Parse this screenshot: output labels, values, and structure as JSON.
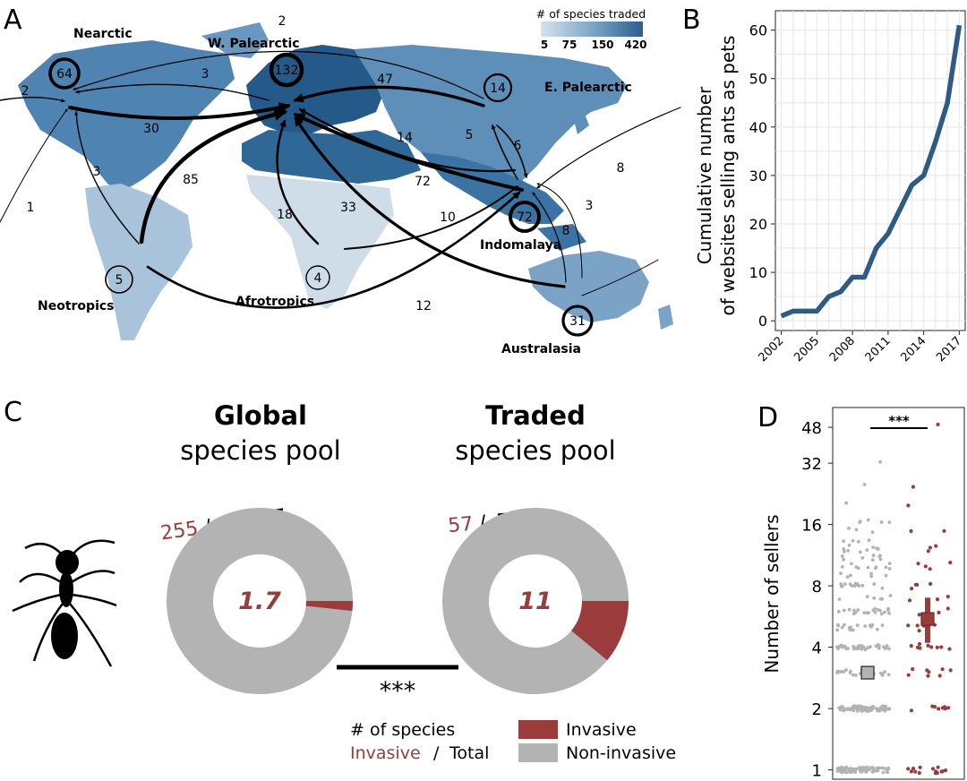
{
  "panels": {
    "a": "A",
    "b": "B",
    "c": "C",
    "d": "D"
  },
  "colors": {
    "invasive": "#9b3b3b",
    "noninvasive": "#b3b3b3",
    "line": "#2d5b82",
    "land_pale": "#cfdde8",
    "land_dark": "#2f6796",
    "arrow": "#000000"
  },
  "chart_data": [
    {
      "type": "map",
      "legend": {
        "title": "# of species traded",
        "ticks": [
          "5",
          "75",
          "150",
          "420"
        ]
      },
      "regions": [
        {
          "name": "Nearctic",
          "self": "64"
        },
        {
          "name": "W. Palearctic",
          "self": "132"
        },
        {
          "name": "E. Palearctic",
          "self": "14"
        },
        {
          "name": "Indomalaya",
          "self": "72"
        },
        {
          "name": "Neotropics",
          "self": "5"
        },
        {
          "name": "Afrotropics",
          "self": "4"
        },
        {
          "name": "Australasia",
          "self": "31"
        }
      ],
      "flows": [
        {
          "label": "2",
          "source": "E. Palearctic",
          "target": "Nearctic",
          "value": 2
        },
        {
          "label": "3",
          "source": "W. Palearctic",
          "target": "Nearctic",
          "value": 3
        },
        {
          "label": "2",
          "source": "outside map (left)",
          "target": "Nearctic",
          "value": 2
        },
        {
          "label": "30",
          "source": "Nearctic",
          "target": "W. Palearctic",
          "value": 30
        },
        {
          "label": "47",
          "source": "E. Palearctic",
          "target": "W. Palearctic",
          "value": 47
        },
        {
          "label": "14",
          "source": "Indomalaya",
          "target": "W. Palearctic",
          "value": 14
        },
        {
          "label": "72",
          "source": "Indomalaya",
          "target": "W. Palearctic",
          "value": 72
        },
        {
          "label": "85",
          "source": "Neotropics",
          "target": "W. Palearctic",
          "value": 85
        },
        {
          "label": "18",
          "source": "Afrotropics",
          "target": "W. Palearctic",
          "value": 18
        },
        {
          "label": "33",
          "source": "Australasia",
          "target": "W. Palearctic",
          "value": 33
        },
        {
          "label": "3",
          "source": "Neotropics",
          "target": "Nearctic",
          "value": 3
        },
        {
          "label": "1",
          "source": "outside map (left)",
          "target": "Nearctic",
          "value": 1
        },
        {
          "label": "5",
          "source": "Indomalaya",
          "target": "E. Palearctic",
          "value": 5
        },
        {
          "label": "6",
          "source": "E. Palearctic",
          "target": "Indomalaya",
          "value": 6
        },
        {
          "label": "8",
          "source": "outside map (right)",
          "target": "Indomalaya",
          "value": 8
        },
        {
          "label": "3",
          "source": "Australasia",
          "target": "Indomalaya",
          "value": 3
        },
        {
          "label": "8",
          "source": "Australasia",
          "target": "Indomalaya",
          "value": 8
        },
        {
          "label": "10",
          "source": "Afrotropics",
          "target": "Indomalaya",
          "value": 10
        },
        {
          "label": "12",
          "source": "Neotropics",
          "target": "Indomalaya",
          "value": 12
        }
      ]
    },
    {
      "type": "line",
      "ylabel_lines": [
        "Cumulative number",
        "of websites selling ants as pets"
      ],
      "x": [
        2002,
        2003,
        2004,
        2005,
        2006,
        2007,
        2008,
        2009,
        2010,
        2011,
        2012,
        2013,
        2014,
        2015,
        2016,
        2017
      ],
      "y": [
        1,
        2,
        2,
        2,
        5,
        6,
        9,
        9,
        15,
        18,
        23,
        28,
        30,
        37,
        45,
        61
      ],
      "xticks": [
        "2002",
        "2005",
        "2008",
        "2011",
        "2014",
        "2017"
      ],
      "yticks": [
        "0",
        "10",
        "20",
        "30",
        "40",
        "50",
        "60"
      ],
      "xlim": [
        2001.5,
        2017.5
      ],
      "ylim": [
        -2,
        64
      ],
      "grid": true
    },
    {
      "type": "pie",
      "donuts": [
        {
          "title_bold": "Global",
          "title_rest": "species pool",
          "invasive": 255,
          "invasive_label": "255",
          "total_label": "15,377",
          "center": "1.7",
          "invasive_pct": 1.7
        },
        {
          "title_bold": "Traded",
          "title_rest": "species pool",
          "invasive": 57,
          "invasive_label": "57",
          "total_label": "520",
          "center": "11",
          "invasive_pct": 11
        }
      ],
      "significance": "***",
      "legend_title": "# of species",
      "legend_title_invasive": "Invasive",
      "legend_title_sep": "/",
      "legend_title_total": "Total",
      "legend_items": [
        "Invasive",
        "Non-invasive"
      ]
    },
    {
      "type": "scatter",
      "ylabel": "Number of sellers",
      "log_scale": true,
      "yticks": [
        "1",
        "2",
        "4",
        "8",
        "16",
        "32",
        "48"
      ],
      "ytick_values": [
        1,
        2,
        4,
        8,
        16,
        32,
        48
      ],
      "ylim": [
        0.9,
        60
      ],
      "significance": "***",
      "groups": [
        {
          "group": "Non-invasive",
          "mean": 3,
          "ci": [
            2.8,
            3.2
          ]
        },
        {
          "group": "Invasive",
          "mean": 5.5,
          "ci": [
            4.2,
            7
          ]
        }
      ]
    }
  ]
}
